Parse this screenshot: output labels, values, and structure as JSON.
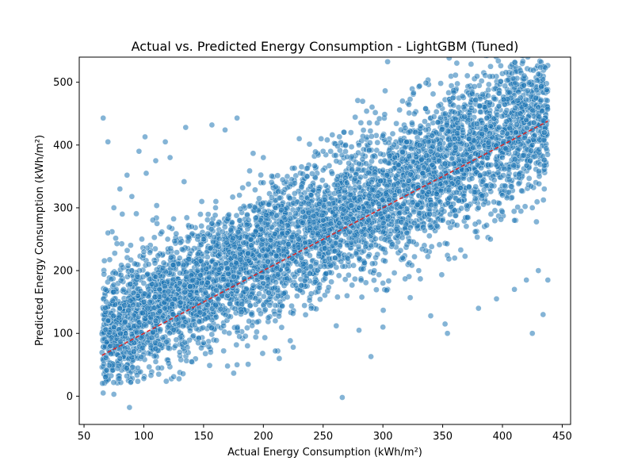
{
  "chart_data": {
    "type": "scatter",
    "title": "Actual vs. Predicted Energy Consumption - LightGBM (Tuned)",
    "xlabel": "Actual Energy Consumption (kWh/m²)",
    "ylabel": "Predicted Energy Consumption (kWh/m²)",
    "xlim": [
      46,
      457
    ],
    "ylim": [
      -45,
      540
    ],
    "xticks": [
      50,
      100,
      150,
      200,
      250,
      300,
      350,
      400,
      450
    ],
    "yticks": [
      0,
      100,
      200,
      300,
      400,
      500
    ],
    "grid": false,
    "legend": "none",
    "point_color": "#1f77b4",
    "reference_line_color": "#d62728",
    "reference_line": {
      "x": [
        65,
        438
      ],
      "y": [
        65,
        438
      ]
    },
    "points": [
      [
        66,
        443
      ],
      [
        70,
        405
      ],
      [
        88,
        -18
      ],
      [
        66,
        5
      ],
      [
        75,
        3
      ],
      [
        266,
        -2
      ],
      [
        290,
        63
      ],
      [
        430,
        513
      ],
      [
        437,
        488
      ],
      [
        425,
        100
      ],
      [
        434,
        130
      ],
      [
        438,
        185
      ],
      [
        397,
        462
      ],
      [
        360,
        452
      ],
      [
        135,
        428
      ],
      [
        157,
        432
      ],
      [
        168,
        424
      ],
      [
        178,
        443
      ],
      [
        101,
        413
      ],
      [
        118,
        405
      ],
      [
        96,
        390
      ],
      [
        89,
        22
      ],
      [
        100,
        28
      ],
      [
        125,
        31
      ],
      [
        140,
        55
      ],
      [
        170,
        48
      ],
      [
        178,
        50
      ],
      [
        210,
        72
      ],
      [
        225,
        78
      ],
      [
        261,
        112
      ],
      [
        280,
        105
      ],
      [
        300,
        110
      ],
      [
        340,
        128
      ],
      [
        352,
        115
      ],
      [
        354,
        100
      ],
      [
        380,
        140
      ],
      [
        395,
        155
      ],
      [
        410,
        170
      ],
      [
        420,
        185
      ],
      [
        430,
        200
      ],
      [
        82,
        290
      ],
      [
        90,
        318
      ],
      [
        80,
        330
      ],
      [
        86,
        352
      ],
      [
        102,
        355
      ],
      [
        110,
        375
      ],
      [
        122,
        380
      ],
      [
        300,
        415
      ],
      [
        320,
        405
      ],
      [
        280,
        400
      ],
      [
        250,
        390
      ],
      [
        230,
        410
      ],
      [
        200,
        380
      ],
      [
        70,
        260
      ],
      [
        75,
        300
      ],
      [
        68,
        170
      ],
      [
        70,
        120
      ],
      [
        72,
        80
      ],
      [
        80,
        60
      ],
      [
        95,
        45
      ],
      [
        110,
        55
      ],
      [
        130,
        70
      ],
      [
        150,
        85
      ],
      [
        180,
        95
      ],
      [
        210,
        120
      ],
      [
        240,
        140
      ],
      [
        270,
        160
      ],
      [
        300,
        180
      ],
      [
        330,
        200
      ],
      [
        360,
        220
      ],
      [
        390,
        250
      ],
      [
        410,
        280
      ],
      [
        425,
        300
      ],
      [
        435,
        330
      ],
      [
        400,
        320
      ],
      [
        380,
        300
      ],
      [
        350,
        280
      ],
      [
        320,
        260
      ],
      [
        290,
        240
      ],
      [
        260,
        220
      ],
      [
        230,
        200
      ],
      [
        200,
        180
      ],
      [
        170,
        160
      ],
      [
        140,
        140
      ],
      [
        110,
        120
      ],
      [
        85,
        100
      ],
      [
        90,
        200
      ],
      [
        100,
        230
      ],
      [
        120,
        250
      ],
      [
        140,
        270
      ],
      [
        160,
        300
      ],
      [
        180,
        320
      ],
      [
        200,
        340
      ],
      [
        220,
        350
      ],
      [
        250,
        360
      ],
      [
        280,
        370
      ],
      [
        310,
        380
      ],
      [
        340,
        390
      ],
      [
        370,
        400
      ],
      [
        400,
        420
      ],
      [
        420,
        440
      ],
      [
        430,
        460
      ],
      [
        415,
        450
      ],
      [
        390,
        430
      ],
      [
        360,
        410
      ],
      [
        330,
        390
      ],
      [
        300,
        360
      ],
      [
        270,
        340
      ],
      [
        240,
        320
      ],
      [
        210,
        300
      ],
      [
        180,
        280
      ],
      [
        150,
        250
      ],
      [
        130,
        220
      ],
      [
        110,
        190
      ],
      [
        95,
        160
      ],
      [
        80,
        140
      ],
      [
        75,
        110
      ],
      [
        100,
        150
      ],
      [
        130,
        180
      ],
      [
        160,
        210
      ],
      [
        190,
        240
      ],
      [
        220,
        260
      ],
      [
        250,
        280
      ],
      [
        280,
        300
      ],
      [
        310,
        320
      ],
      [
        340,
        340
      ],
      [
        370,
        360
      ],
      [
        400,
        380
      ],
      [
        425,
        400
      ],
      [
        435,
        420
      ]
    ]
  }
}
